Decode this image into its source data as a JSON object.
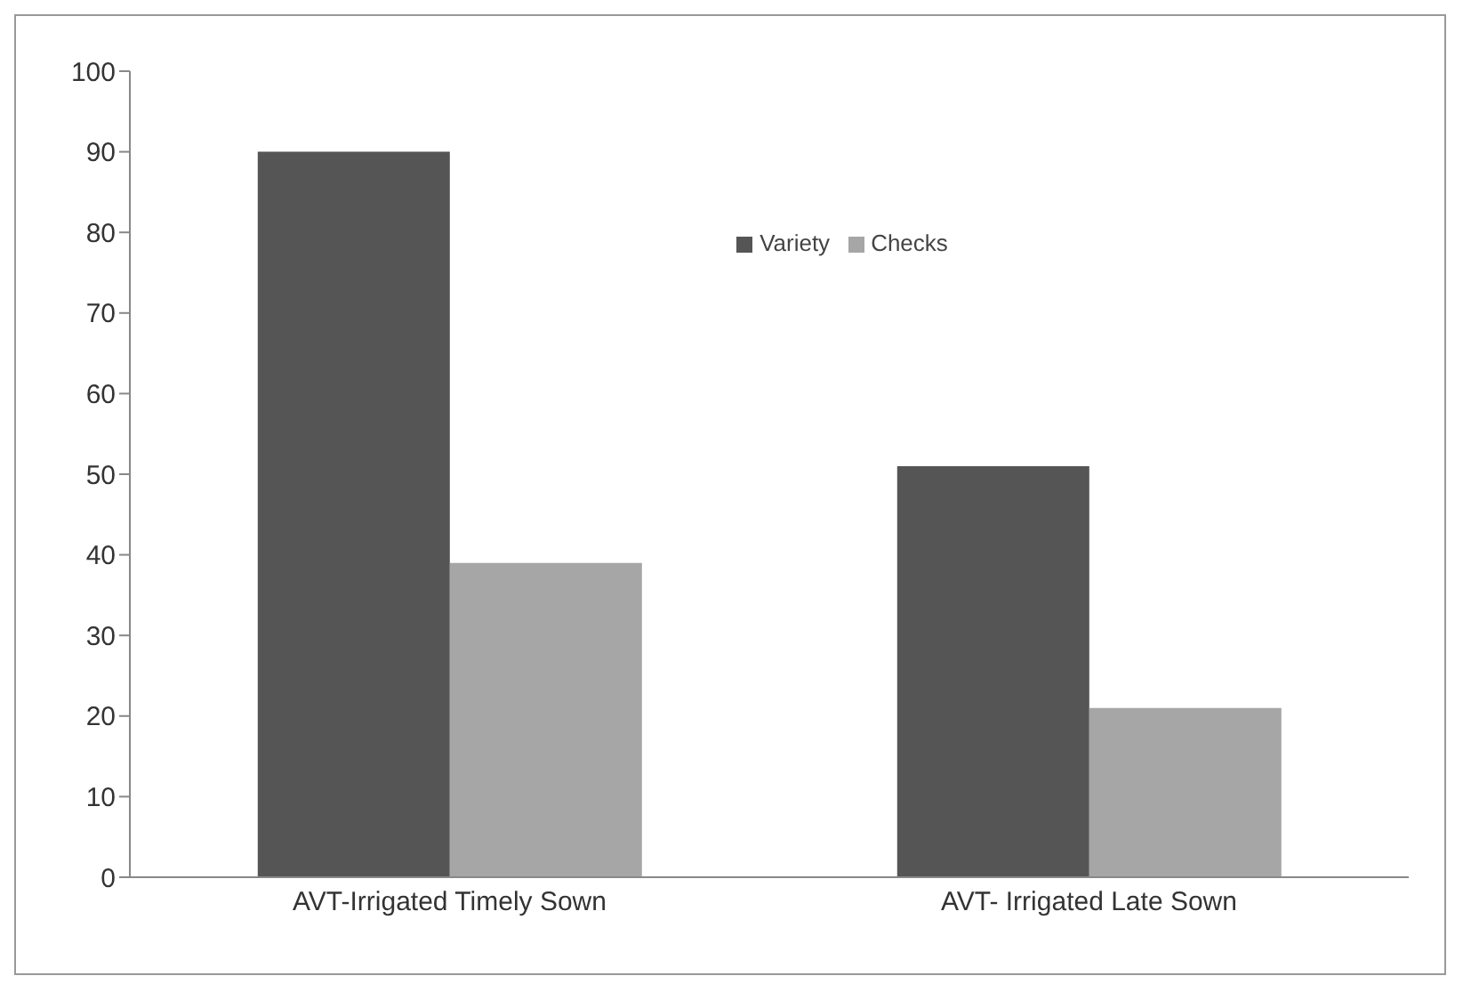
{
  "chart_data": {
    "type": "bar",
    "categories": [
      "AVT-Irrigated Timely Sown",
      "AVT- Irrigated Late Sown"
    ],
    "series": [
      {
        "name": "Variety",
        "color": "#555555",
        "values": [
          90,
          51
        ]
      },
      {
        "name": "Checks",
        "color": "#a6a6a6",
        "values": [
          39,
          21
        ]
      }
    ],
    "ylim": [
      0,
      100
    ],
    "yticks": [
      0,
      10,
      20,
      30,
      40,
      50,
      60,
      70,
      80,
      90,
      100
    ],
    "legend": "top"
  }
}
